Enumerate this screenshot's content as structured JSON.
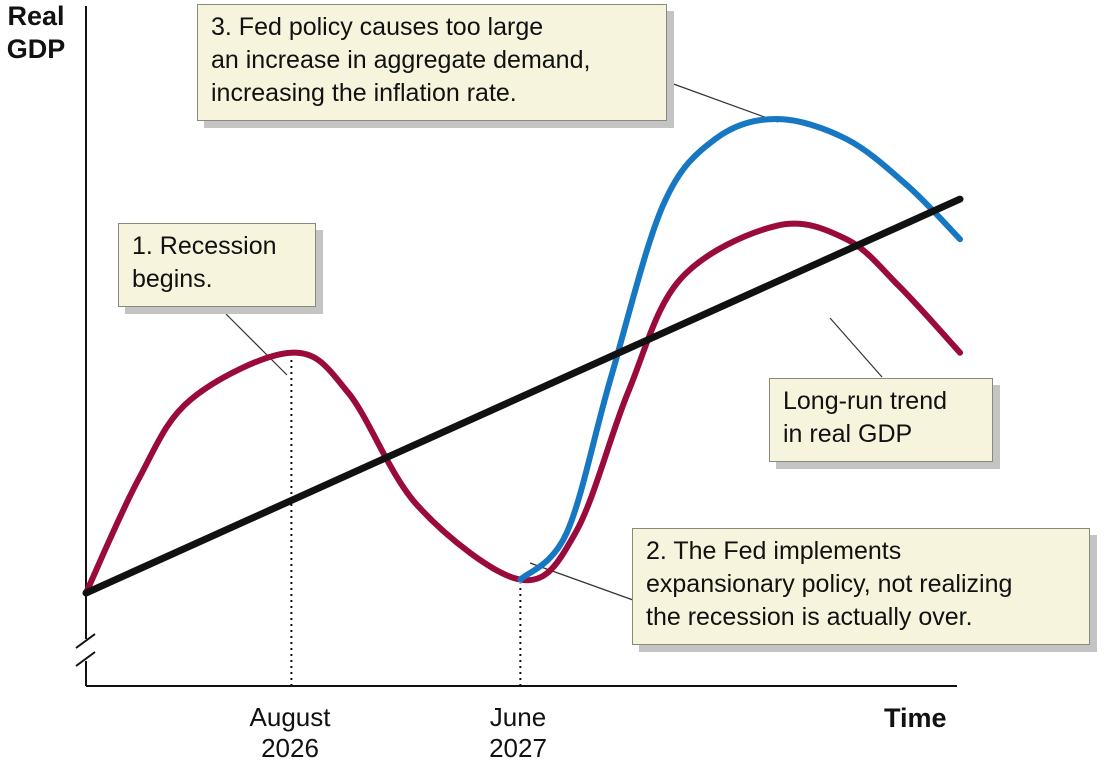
{
  "chart_data": {
    "type": "line",
    "xlabel": "Time",
    "ylabel": [
      "Real",
      "GDP"
    ],
    "x_ticks": [
      {
        "lines": [
          "August",
          "2026"
        ],
        "t": 0.235
      },
      {
        "lines": [
          "June",
          "2027"
        ],
        "t": 0.497
      }
    ],
    "series": [
      {
        "role": "trend",
        "color": "#111111",
        "points": [
          [
            0,
            0.25
          ],
          [
            1,
            0.84
          ]
        ]
      },
      {
        "role": "actual",
        "color": "#9a0a3d",
        "points": [
          [
            0,
            0.25
          ],
          [
            0.06,
            0.42
          ],
          [
            0.12,
            0.54
          ],
          [
            0.235,
            0.61
          ],
          [
            0.3,
            0.55
          ],
          [
            0.38,
            0.38
          ],
          [
            0.497,
            0.27
          ],
          [
            0.56,
            0.34
          ],
          [
            0.62,
            0.55
          ],
          [
            0.68,
            0.72
          ],
          [
            0.79,
            0.8
          ],
          [
            0.87,
            0.78
          ],
          [
            0.93,
            0.71
          ],
          [
            1.0,
            0.61
          ]
        ]
      },
      {
        "role": "with-fed-policy",
        "color": "#1677c2",
        "points": [
          [
            0.497,
            0.27
          ],
          [
            0.55,
            0.34
          ],
          [
            0.6,
            0.57
          ],
          [
            0.66,
            0.83
          ],
          [
            0.72,
            0.93
          ],
          [
            0.79,
            0.96
          ],
          [
            0.87,
            0.93
          ],
          [
            0.94,
            0.86
          ],
          [
            1.0,
            0.78
          ]
        ]
      }
    ],
    "x_range": [
      0,
      1
    ],
    "y_range": [
      0,
      1
    ],
    "grid": false,
    "annotations": [
      {
        "id": "recession",
        "lines": [
          "1. Recession",
          "begins."
        ]
      },
      {
        "id": "fed-policy",
        "lines": [
          "2. The Fed implements",
          "expansionary policy, not realizing",
          "the recession is actually over."
        ]
      },
      {
        "id": "too-large",
        "lines": [
          "3. Fed policy causes too large",
          "an increase in aggregate demand,",
          "increasing the inflation rate."
        ]
      },
      {
        "id": "trend",
        "lines": [
          "Long-run trend",
          "in real GDP"
        ]
      }
    ]
  }
}
